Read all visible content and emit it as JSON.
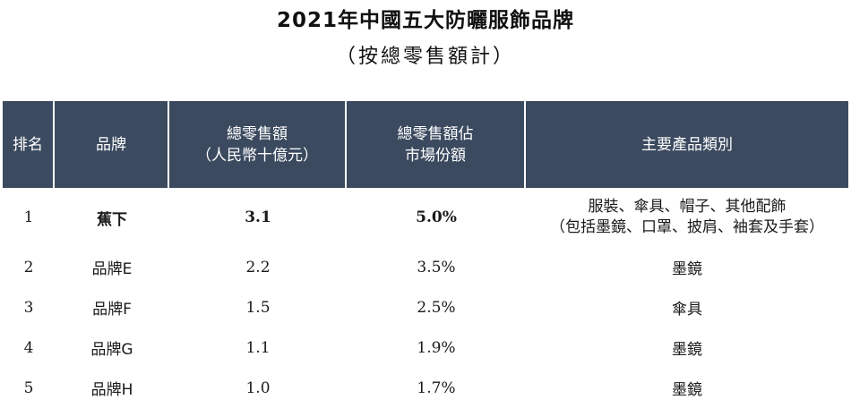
{
  "title": {
    "line1": "2021年中國五大防曬服飾品牌",
    "line2": "（按總零售額計）"
  },
  "table": {
    "headers": {
      "rank": "排名",
      "brand": "品牌",
      "sales_line1": "總零售額",
      "sales_line2": "（人民幣十億元）",
      "share_line1": "總零售額佔",
      "share_line2": "市場份額",
      "category": "主要產品類別"
    },
    "rows": [
      {
        "rank": "1",
        "brand": "蕉下",
        "sales": "3.1",
        "share": "5.0%",
        "category_line1": "服裝、傘具、帽子、其他配飾",
        "category_line2": "（包括墨鏡、口罩、披肩、袖套及手套）"
      },
      {
        "rank": "2",
        "brand": "品牌E",
        "sales": "2.2",
        "share": "3.5%",
        "category_line1": "墨鏡",
        "category_line2": ""
      },
      {
        "rank": "3",
        "brand": "品牌F",
        "sales": "1.5",
        "share": "2.5%",
        "category_line1": "傘具",
        "category_line2": ""
      },
      {
        "rank": "4",
        "brand": "品牌G",
        "sales": "1.1",
        "share": "1.9%",
        "category_line1": "墨鏡",
        "category_line2": ""
      },
      {
        "rank": "5",
        "brand": "品牌H",
        "sales": "1.0",
        "share": "1.7%",
        "category_line1": "墨鏡",
        "category_line2": ""
      }
    ]
  },
  "colors": {
    "header_bg": "#3b4a5f",
    "header_text": "#ffffff"
  }
}
